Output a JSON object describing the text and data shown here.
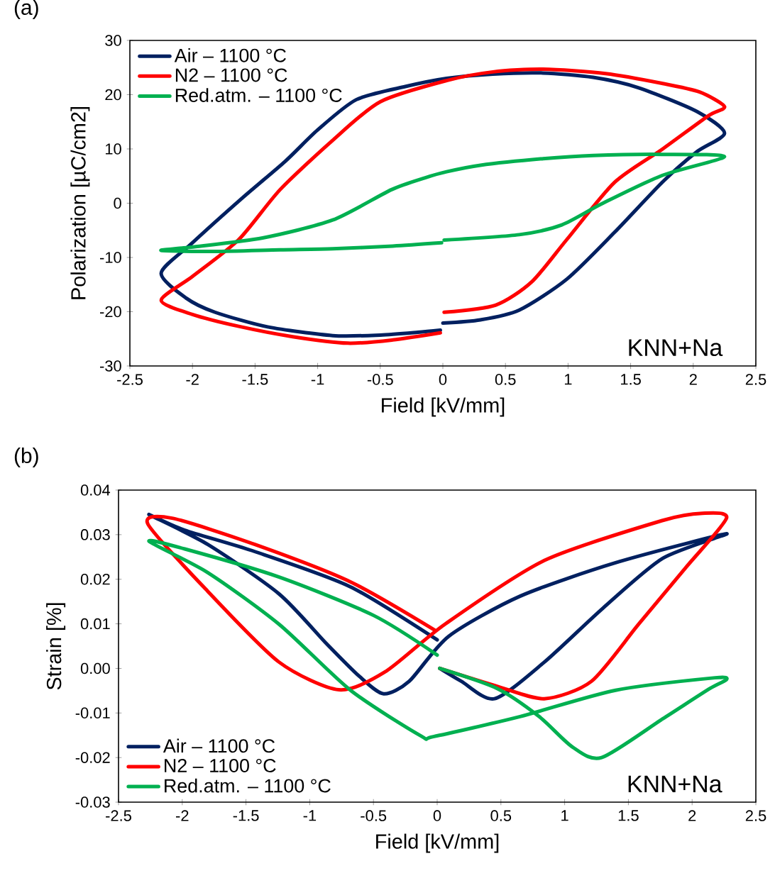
{
  "chart_data": [
    {
      "type": "line",
      "title": "(a)",
      "xlabel": "Field [kV/mm]",
      "ylabel": "Polarization [µC/cm2]",
      "annotations": [
        "KNN+Na"
      ],
      "legend": "top left",
      "marker": "none",
      "line_style": "solid",
      "xlim": [
        -2.5,
        2.5
      ],
      "xticks": [
        -2.5,
        -2,
        -1.5,
        -1,
        -0.5,
        0,
        0.5,
        1,
        1.5,
        2,
        2.5
      ],
      "ylim": [
        -30,
        30
      ],
      "yticks": [
        -30,
        -20,
        -10,
        0,
        10,
        20,
        30
      ],
      "series": [
        {
          "name": "Air – 1100 °C",
          "color": "#002060",
          "x": [
            0,
            0.3,
            0.61,
            0.99,
            1.37,
            1.75,
            2.03,
            2.25,
            2.03,
            1.56,
            1.2,
            0.8,
            0.4,
            0.03,
            -0.3,
            -0.69,
            -1.0,
            -1.26,
            -1.6,
            -2.01,
            -2.25,
            -2.05,
            -1.82,
            -1.4,
            -0.88,
            -0.5,
            -0.2,
            -0.02
          ],
          "values": [
            -22.1,
            -21.5,
            -19.7,
            -14,
            -5.4,
            3.8,
            9.5,
            12.9,
            16.9,
            21.3,
            23.2,
            24,
            23.8,
            23,
            21.5,
            19.1,
            13.5,
            7.7,
            1.0,
            -7.5,
            -12.9,
            -17.5,
            -20.1,
            -22.8,
            -24.4,
            -24.3,
            -23.8,
            -23.4
          ]
        },
        {
          "name": "N2 – 1100 °C",
          "color": "#ff0000",
          "x": [
            0.01,
            0.42,
            0.71,
            0.99,
            1.37,
            1.75,
            2.12,
            2.25,
            2.05,
            1.75,
            1.3,
            0.8,
            0.4,
            0.03,
            -0.5,
            -0.88,
            -1.3,
            -1.63,
            -2.0,
            -2.25,
            -2.0,
            -1.63,
            -1.2,
            -0.76,
            -0.4,
            -0.02
          ],
          "values": [
            -20.1,
            -18.8,
            -14.5,
            -6.7,
            3.8,
            9.9,
            16.1,
            17.8,
            20.5,
            22.1,
            23.9,
            24.7,
            24.2,
            22.6,
            18.7,
            11.6,
            2.5,
            -6.7,
            -13.5,
            -17.9,
            -20.5,
            -22.7,
            -24.6,
            -25.8,
            -25.2,
            -23.9
          ]
        },
        {
          "name": "Red.atm. – 1100 °C",
          "color": "#00b050",
          "x": [
            0.01,
            0.61,
            0.95,
            1.27,
            1.75,
            2.25,
            1.75,
            1.2,
            0.8,
            0.3,
            0.03,
            -0.14,
            -0.41,
            -0.88,
            -1.44,
            -2.01,
            -2.25,
            -1.82,
            -1.3,
            -0.88,
            -0.4,
            -0.01
          ],
          "values": [
            -6.8,
            -5.8,
            -4.0,
            -0.1,
            5.1,
            8.6,
            9.0,
            8.8,
            8.2,
            7.0,
            5.8,
            4.7,
            2.5,
            -3.1,
            -6.4,
            -8.1,
            -8.7,
            -8.9,
            -8.6,
            -8.4,
            -7.9,
            -7.3
          ]
        }
      ]
    },
    {
      "type": "line",
      "title": "(b)",
      "xlabel": "Field [kV/mm]",
      "ylabel": "Strain [%]",
      "annotations": [
        "KNN+Na"
      ],
      "legend": "bottom left",
      "marker": "none",
      "line_style": "solid",
      "xlim": [
        -2.5,
        2.5
      ],
      "xticks": [
        -2.5,
        -2,
        -1.5,
        -1,
        -0.5,
        0,
        0.5,
        1,
        1.5,
        2,
        2.5
      ],
      "ylim": [
        -0.03,
        0.04
      ],
      "yticks": [
        -0.03,
        -0.02,
        -0.01,
        {
          "value": 0,
          "label": "0.00"
        },
        0.01,
        0.02,
        0.03,
        0.04
      ],
      "series": [
        {
          "name": "Air – 1100 °C",
          "color": "#002060",
          "x": [
            0.02,
            0.19,
            0.45,
            0.84,
            1.3,
            1.77,
            2.27,
            1.4,
            0.65,
            0.09,
            -0.22,
            -0.42,
            -0.61,
            -0.87,
            -1.24,
            -1.8,
            -2.26,
            -1.98,
            -1.43,
            -0.68,
            0
          ],
          "values": [
            0,
            -0.0029,
            -0.0068,
            0.0014,
            0.0135,
            0.0247,
            0.0302,
            0.0237,
            0.0162,
            0.0072,
            -0.0029,
            -0.0057,
            -0.0018,
            0.0056,
            0.0167,
            0.0278,
            0.0345,
            0.031,
            0.0262,
            0.0183,
            0.0064
          ]
        },
        {
          "name": "N2 – 1100 °C",
          "color": "#ff0000",
          "x": [
            0.02,
            0.47,
            0.84,
            1.21,
            1.58,
            1.95,
            2.27,
            2.08,
            1.77,
            0.84,
            0.06,
            -0.41,
            -0.77,
            -1.24,
            -1.8,
            -2.27,
            -2.08,
            -1.43,
            -0.68,
            -0.02
          ],
          "values": [
            0,
            -0.004,
            -0.0068,
            -0.0029,
            0.0099,
            0.0226,
            0.0337,
            0.0348,
            0.0332,
            0.0242,
            0.0099,
            -0.0008,
            -0.0048,
            0.0014,
            0.0173,
            0.0324,
            0.0337,
            0.0278,
            0.0194,
            0.0086
          ]
        },
        {
          "name": "Red.atm. – 1100 °C",
          "color": "#00b050",
          "x": [
            0.02,
            0.47,
            0.8,
            1.06,
            1.29,
            1.77,
            2.14,
            2.27,
            2.18,
            1.4,
            0.65,
            -0.03,
            -0.13,
            -0.68,
            -1.24,
            -1.8,
            -2.26,
            -1.98,
            -1.24,
            -0.5,
            0
          ],
          "values": [
            0,
            -0.0045,
            -0.0108,
            -0.0176,
            -0.02,
            -0.0113,
            -0.0045,
            -0.0025,
            -0.0021,
            -0.0049,
            -0.0108,
            -0.0153,
            -0.0151,
            -0.0049,
            0.0099,
            0.0215,
            0.0285,
            0.0268,
            0.0205,
            0.0119,
            0.003
          ]
        }
      ]
    }
  ]
}
